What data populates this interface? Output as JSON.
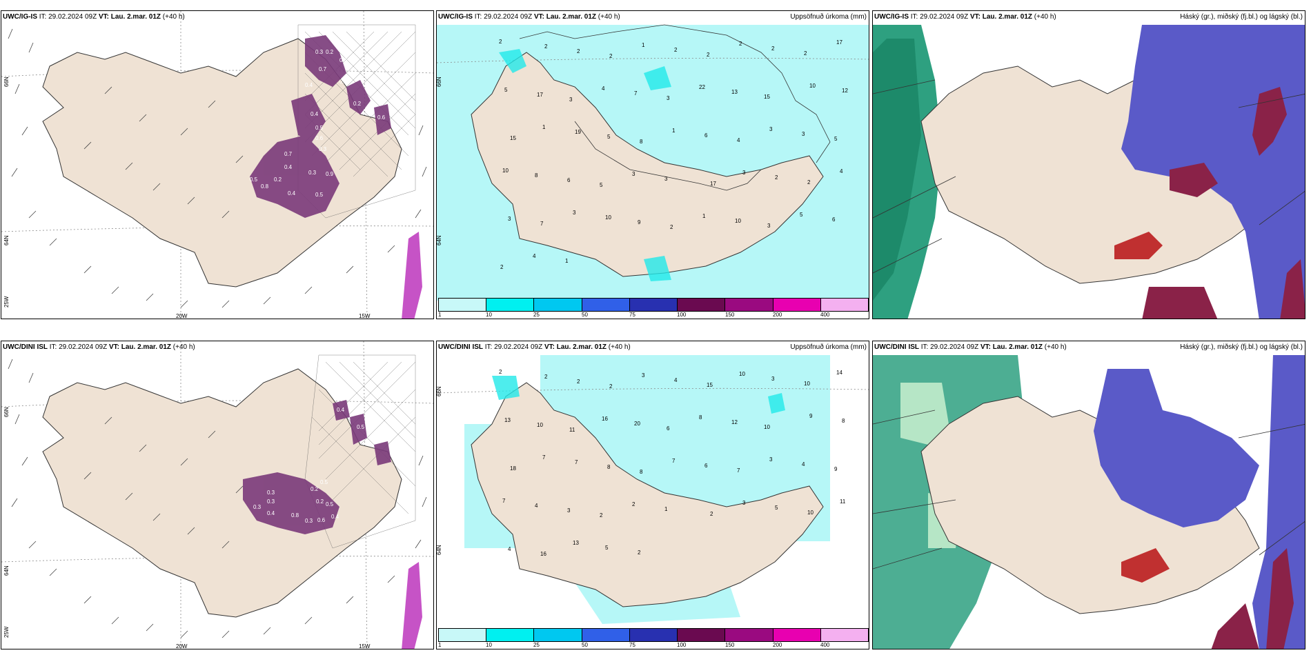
{
  "panels": [
    {
      "id": "top-left",
      "model": "UWC/IG-IS",
      "it_label": "IT:",
      "it_value": "29.02.2024 09Z",
      "vt_label": "VT:",
      "vt_value": "Lau. 2.mar. 01Z",
      "lead": "(+40 h)",
      "right_title": "",
      "lat_labels": [
        "66N",
        "64N",
        "25W"
      ],
      "lon_labels": [
        "20W",
        "15W"
      ],
      "values": [
        "0.3",
        "0.2",
        "0.4",
        "0.7",
        "0.4",
        "0.8",
        "0.2",
        "0.4",
        "0.6",
        "0.5",
        "0.6",
        "0.3",
        "0.7",
        "0.4",
        "0.2",
        "0.5",
        "0.8",
        "0.3",
        "0.9",
        "0.4",
        "0.5"
      ]
    },
    {
      "id": "top-mid",
      "model": "UWC/IG-IS",
      "it_label": "IT:",
      "it_value": "29.02.2024 09Z",
      "vt_label": "VT:",
      "vt_value": "Lau. 2.mar. 01Z",
      "lead": "(+40 h)",
      "right_title": "Uppsöfnuð úrkoma (mm)",
      "lat_labels": [
        "66N",
        "64N"
      ],
      "values": [
        "2",
        "2",
        "2",
        "2",
        "1",
        "2",
        "2",
        "2",
        "2",
        "2",
        "17",
        "5",
        "17",
        "3",
        "4",
        "7",
        "3",
        "22",
        "13",
        "15",
        "10",
        "12",
        "15",
        "1",
        "19",
        "5",
        "8",
        "1",
        "6",
        "4",
        "3",
        "3",
        "5",
        "10",
        "8",
        "6",
        "5",
        "3",
        "3",
        "17",
        "3",
        "2",
        "2",
        "4",
        "3",
        "7",
        "3",
        "10",
        "9",
        "2",
        "1",
        "10",
        "3",
        "5",
        "6",
        "2",
        "4",
        "1"
      ],
      "colorbar_labels": [
        "1",
        "10",
        "25",
        "50",
        "75",
        "100",
        "150",
        "200",
        "400"
      ]
    },
    {
      "id": "top-right",
      "model": "UWC/IG-IS",
      "it_label": "IT:",
      "it_value": "29.02.2024 09Z",
      "vt_label": "VT:",
      "vt_value": "Lau. 2.mar. 01Z",
      "lead": "(+40 h)",
      "right_title": "Háský (gr.), miðský (fj.bl.) og lágský (bl.)"
    },
    {
      "id": "bottom-left",
      "model": "UWC/DINI ISL",
      "it_label": "IT:",
      "it_value": "29.02.2024 09Z",
      "vt_label": "VT:",
      "vt_value": "Lau. 2.mar. 01Z",
      "lead": "(+40 h)",
      "right_title": "",
      "lat_labels": [
        "66N",
        "64N",
        "25W"
      ],
      "lon_labels": [
        "20W",
        "15W"
      ],
      "values": [
        "0.4",
        "0.5",
        "0.3",
        "0.2",
        "0.3",
        "0.3",
        "0.4",
        "0.8",
        "0.3",
        "0.2",
        "0.6",
        "0.5",
        "0.4",
        "0.5"
      ]
    },
    {
      "id": "bottom-mid",
      "model": "UWC/DINI ISL",
      "it_label": "IT:",
      "it_value": "29.02.2024 09Z",
      "vt_label": "VT:",
      "vt_value": "Lau. 2.mar. 01Z",
      "lead": "(+40 h)",
      "right_title": "Uppsöfnuð úrkoma (mm)",
      "lat_labels": [
        "66N",
        "64N"
      ],
      "values": [
        "2",
        "2",
        "2",
        "2",
        "3",
        "4",
        "15",
        "10",
        "3",
        "10",
        "14",
        "13",
        "10",
        "11",
        "16",
        "20",
        "6",
        "8",
        "12",
        "10",
        "9",
        "8",
        "18",
        "7",
        "7",
        "8",
        "8",
        "7",
        "6",
        "7",
        "3",
        "4",
        "9",
        "7",
        "4",
        "3",
        "2",
        "2",
        "1",
        "2",
        "3",
        "5",
        "10",
        "11",
        "4",
        "16",
        "13",
        "5",
        "2"
      ],
      "colorbar_labels": [
        "1",
        "10",
        "25",
        "50",
        "75",
        "100",
        "150",
        "200",
        "400"
      ]
    },
    {
      "id": "bottom-right",
      "model": "UWC/DINI ISL",
      "it_label": "IT:",
      "it_value": "29.02.2024 09Z",
      "vt_label": "VT:",
      "vt_value": "Lau. 2.mar. 01Z",
      "lead": "(+40 h)",
      "right_title": "Háský (gr.), miðský (fj.bl.) og lágský (bl.)"
    }
  ],
  "colors": {
    "land": "#efe2d4",
    "precip_light": "#b6f7f7",
    "precip_10": "#22e8e8",
    "cloud_high": "#2ea080",
    "cloud_mid": "#5a5ac8",
    "cloud_low": "#8a2248",
    "purple": "#7a3a7a",
    "colorbar": [
      "#c8f8f8",
      "#00f0f0",
      "#00c8f0",
      "#3060e8",
      "#2830b0",
      "#6a0a50",
      "#9a0a80",
      "#e800b0",
      "#f4b0f0"
    ]
  }
}
